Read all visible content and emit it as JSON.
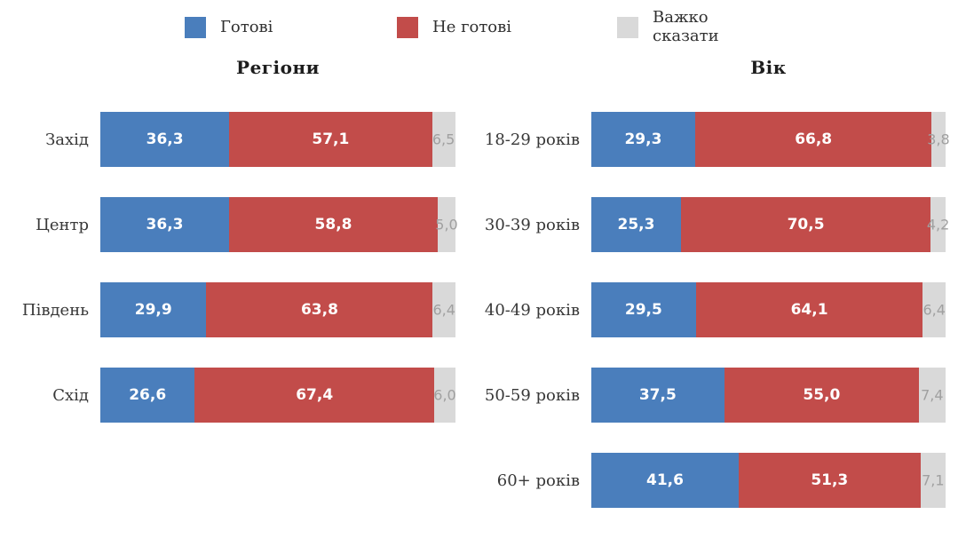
{
  "legend": {
    "items": [
      {
        "label": "Готові",
        "color": "#4a7ebc"
      },
      {
        "label": "Не готові",
        "color": "#c24c4a"
      },
      {
        "label": "Важко сказати",
        "color": "#d9d9d9"
      }
    ]
  },
  "chart_data": [
    {
      "type": "bar",
      "orientation": "horizontal",
      "stacked": true,
      "title": "Регіони",
      "categories": [
        "Захід",
        "Центр",
        "Південь",
        "Схід"
      ],
      "series": [
        {
          "name": "Готові",
          "color": "#4a7ebc",
          "values": [
            36.3,
            36.3,
            29.9,
            26.6
          ]
        },
        {
          "name": "Не готові",
          "color": "#c24c4a",
          "values": [
            57.1,
            58.8,
            63.8,
            67.4
          ]
        },
        {
          "name": "Важко сказати",
          "color": "#d9d9d9",
          "values": [
            6.5,
            5.0,
            6.4,
            6.0
          ]
        }
      ],
      "xlim": [
        0,
        100
      ],
      "grid": false,
      "legend_position": "top",
      "value_label_format": "comma-decimal"
    },
    {
      "type": "bar",
      "orientation": "horizontal",
      "stacked": true,
      "title": "Вік",
      "categories": [
        "18-29 років",
        "30-39 років",
        "40-49 років",
        "50-59 років",
        "60+ років"
      ],
      "series": [
        {
          "name": "Готові",
          "color": "#4a7ebc",
          "values": [
            29.3,
            25.3,
            29.5,
            37.5,
            41.6
          ]
        },
        {
          "name": "Не готові",
          "color": "#c24c4a",
          "values": [
            66.8,
            70.5,
            64.1,
            55.0,
            51.3
          ]
        },
        {
          "name": "Важко сказати",
          "color": "#d9d9d9",
          "values": [
            3.8,
            4.2,
            6.4,
            7.4,
            7.1
          ]
        }
      ],
      "xlim": [
        0,
        100
      ],
      "grid": false,
      "legend_position": "top",
      "value_label_format": "comma-decimal"
    }
  ]
}
